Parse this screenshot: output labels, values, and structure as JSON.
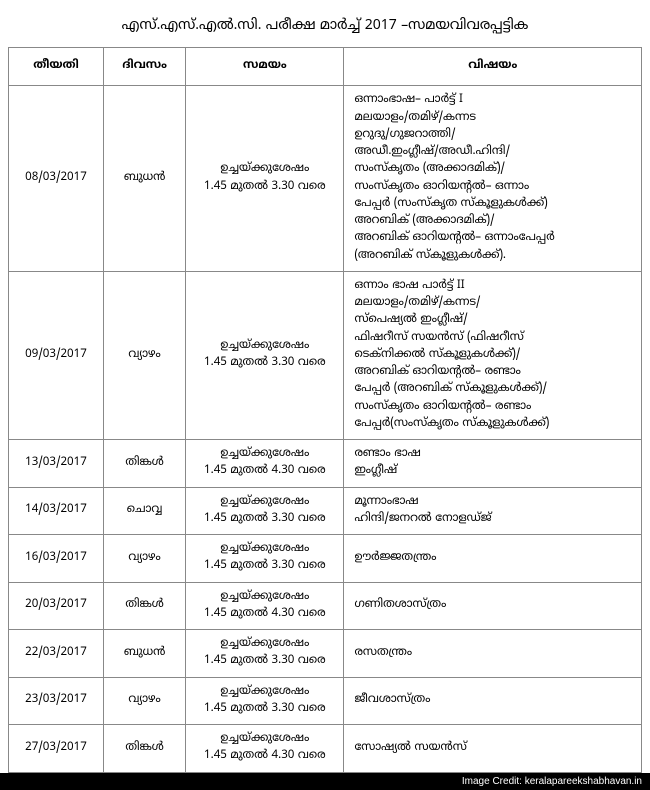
{
  "title": "എസ്.എസ്.എൽ.സി. പരീക്ഷ മാർച്ച് 2017 –സമയവിവരപ്പട്ടിക",
  "columns": [
    "തീയതി",
    "ദിവസം",
    "സമയം",
    "വിഷയം"
  ],
  "rows": [
    {
      "date": "08/03/2017",
      "day": "ബുധൻ",
      "time": "ഉച്ചയ്ക്കുശേഷം\n1.45 മുതൽ 3.30 വരെ",
      "subject": "ഒന്നാംഭാഷ– പാർട്ട് I\nമലയാളം/തമിഴ്/കന്നട\nഉറുദു/ഗുജറാത്തി/\nഅഡീ.ഇംഗ്ലീഷ്/അഡീ.ഹിന്ദി/\nസംസ്കൃതം (അക്കാദമിക്)/\nസംസ്കൃതം ഓറിയന്റൽ– ഒന്നാം\nപേപ്പർ (സംസ്കൃത സ്കൂളുകൾക്ക്)\nഅറബിക് (അക്കാദമിക്)/\nഅറബിക് ഓറിയന്റൽ– ഒന്നാംപേപ്പർ\n(അറബിക് സ്കൂളുകൾക്ക്)."
    },
    {
      "date": "09/03/2017",
      "day": "വ്യാഴം",
      "time": "ഉച്ചയ്ക്കുശേഷം\n1.45 മുതൽ 3.30 വരെ",
      "subject": "ഒന്നാം ഭാഷ പാർട്ട് II\nമലയാളം/തമിഴ്/കന്നട/\nസ്പെഷ്യൽ ഇംഗ്ലീഷ്/\nഫിഷറീസ് സയൻസ് (ഫിഷറീസ്\nടെക്നിക്കൽ സ്കൂളുകൾക്ക്)/\nഅറബിക് ഓറിയന്റൽ– രണ്ടാം\nപേപ്പർ (അറബിക് സ്കൂളുകൾക്ക്)/\nസംസ്കൃതം ഓറിയന്റൽ– രണ്ടാം\nപേപ്പർ(സംസ്കൃതം സ്കൂളുകൾക്ക്)"
    },
    {
      "date": "13/03/2017",
      "day": "തിങ്കൾ",
      "time": "ഉച്ചയ്ക്കുശേഷം\n1.45 മുതൽ 4.30 വരെ",
      "subject": "രണ്ടാം ഭാഷ\nഇംഗ്ലീഷ്"
    },
    {
      "date": "14/03/2017",
      "day": "ചൊവ്വ",
      "time": "ഉച്ചയ്ക്കുശേഷം\n1.45 മുതൽ 3.30 വരെ",
      "subject": "മൂന്നാംഭാഷ\nഹിന്ദി/ജനറൽ നോളഡ്ജ്"
    },
    {
      "date": "16/03/2017",
      "day": "വ്യാഴം",
      "time": "ഉച്ചയ്ക്കുശേഷം\n1.45 മുതൽ 3.30 വരെ",
      "subject": "ഊർജ്ജതന്ത്രം"
    },
    {
      "date": "20/03/2017",
      "day": "തിങ്കൾ",
      "time": "ഉച്ചയ്ക്കുശേഷം\n1.45 മുതൽ 4.30 വരെ",
      "subject": "ഗണിതശാസ്ത്രം"
    },
    {
      "date": "22/03/2017",
      "day": "ബുധൻ",
      "time": "ഉച്ചയ്ക്കുശേഷം\n1.45 മുതൽ 3.30 വരെ",
      "subject": "രസതന്ത്രം"
    },
    {
      "date": "23/03/2017",
      "day": "വ്യാഴം",
      "time": "ഉച്ചയ്ക്കുശേഷം\n1.45 മുതൽ 3.30 വരെ",
      "subject": "ജീവശാസ്ത്രം"
    },
    {
      "date": "27/03/2017",
      "day": "തിങ്കൾ",
      "time": "ഉച്ചയ്ക്കുശേഷം\n1.45 മുതൽ 4.30 വരെ",
      "subject": "സോഷ്യൽ സയൻസ്"
    }
  ],
  "credit": "Image Credit: keralapareekshabhavan.in",
  "colors": {
    "background": "#ffffff",
    "border": "#888888",
    "text": "#000000",
    "credit_bg": "#000000",
    "credit_text": "#ffffff"
  },
  "fonts": {
    "title_size": 14,
    "cell_size": 11.5,
    "credit_size": 10
  },
  "column_widths_pct": [
    15,
    13,
    25,
    47
  ]
}
